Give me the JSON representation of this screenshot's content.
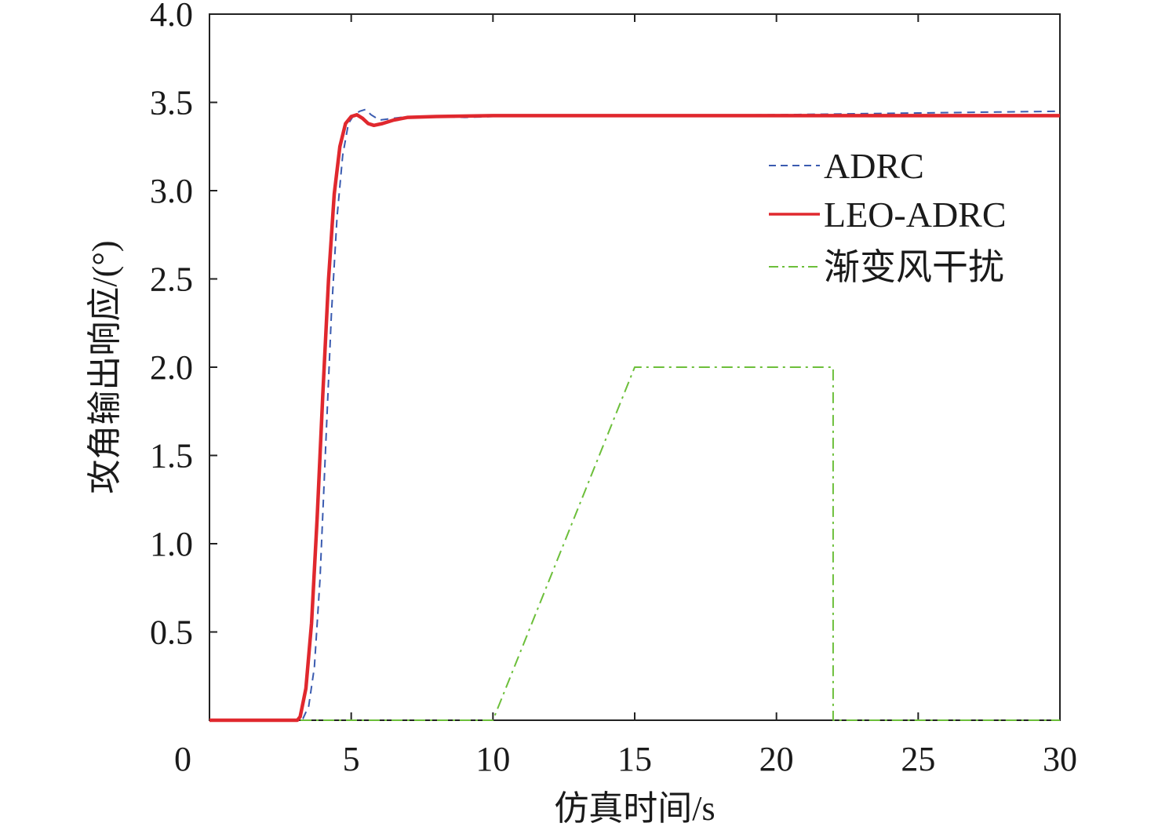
{
  "chart_data": {
    "type": "line",
    "title": "",
    "xlabel": "仿真时间/s",
    "ylabel": "攻角输出响应/(°)",
    "xlim": [
      0,
      30
    ],
    "ylim": [
      0,
      4.0
    ],
    "x_ticks": [
      "0",
      "5",
      "10",
      "15",
      "20",
      "25",
      "30"
    ],
    "y_ticks": [
      "0.5",
      "1.0",
      "1.5",
      "2.0",
      "2.5",
      "3.0",
      "3.5",
      "4.0"
    ],
    "grid": false,
    "legend_position": "top-right",
    "series": [
      {
        "name": "ADRC",
        "color": "#3a5bb0",
        "style": "dashed",
        "points": [
          [
            0,
            0
          ],
          [
            3.1,
            0
          ],
          [
            3.3,
            0.01
          ],
          [
            3.5,
            0.08
          ],
          [
            3.7,
            0.3
          ],
          [
            3.9,
            0.8
          ],
          [
            4.1,
            1.55
          ],
          [
            4.3,
            2.3
          ],
          [
            4.5,
            2.85
          ],
          [
            4.7,
            3.2
          ],
          [
            4.9,
            3.38
          ],
          [
            5.1,
            3.43
          ],
          [
            5.3,
            3.45
          ],
          [
            5.5,
            3.46
          ],
          [
            5.7,
            3.43
          ],
          [
            6.0,
            3.4
          ],
          [
            6.5,
            3.41
          ],
          [
            7,
            3.42
          ],
          [
            8,
            3.42
          ],
          [
            9,
            3.415
          ],
          [
            10,
            3.42
          ],
          [
            15,
            3.425
          ],
          [
            20,
            3.43
          ],
          [
            25,
            3.44
          ],
          [
            30,
            3.45
          ]
        ]
      },
      {
        "name": "LEO-ADRC",
        "color": "#e0282e",
        "style": "solid",
        "points": [
          [
            0,
            0
          ],
          [
            3.1,
            0
          ],
          [
            3.2,
            0.02
          ],
          [
            3.4,
            0.18
          ],
          [
            3.6,
            0.55
          ],
          [
            3.8,
            1.15
          ],
          [
            4.0,
            1.85
          ],
          [
            4.2,
            2.5
          ],
          [
            4.4,
            2.98
          ],
          [
            4.6,
            3.25
          ],
          [
            4.8,
            3.38
          ],
          [
            5.0,
            3.42
          ],
          [
            5.2,
            3.43
          ],
          [
            5.4,
            3.41
          ],
          [
            5.6,
            3.38
          ],
          [
            5.8,
            3.37
          ],
          [
            6.1,
            3.38
          ],
          [
            6.5,
            3.4
          ],
          [
            7,
            3.415
          ],
          [
            8,
            3.42
          ],
          [
            10,
            3.425
          ],
          [
            15,
            3.425
          ],
          [
            20,
            3.425
          ],
          [
            25,
            3.425
          ],
          [
            30,
            3.425
          ]
        ]
      },
      {
        "name": "渐变风干扰",
        "color": "#6cbf3a",
        "style": "dash-dot",
        "points": [
          [
            0,
            0
          ],
          [
            10,
            0
          ],
          [
            15,
            2.0
          ],
          [
            22,
            2.0
          ],
          [
            22,
            0
          ],
          [
            30,
            0
          ]
        ]
      }
    ]
  }
}
